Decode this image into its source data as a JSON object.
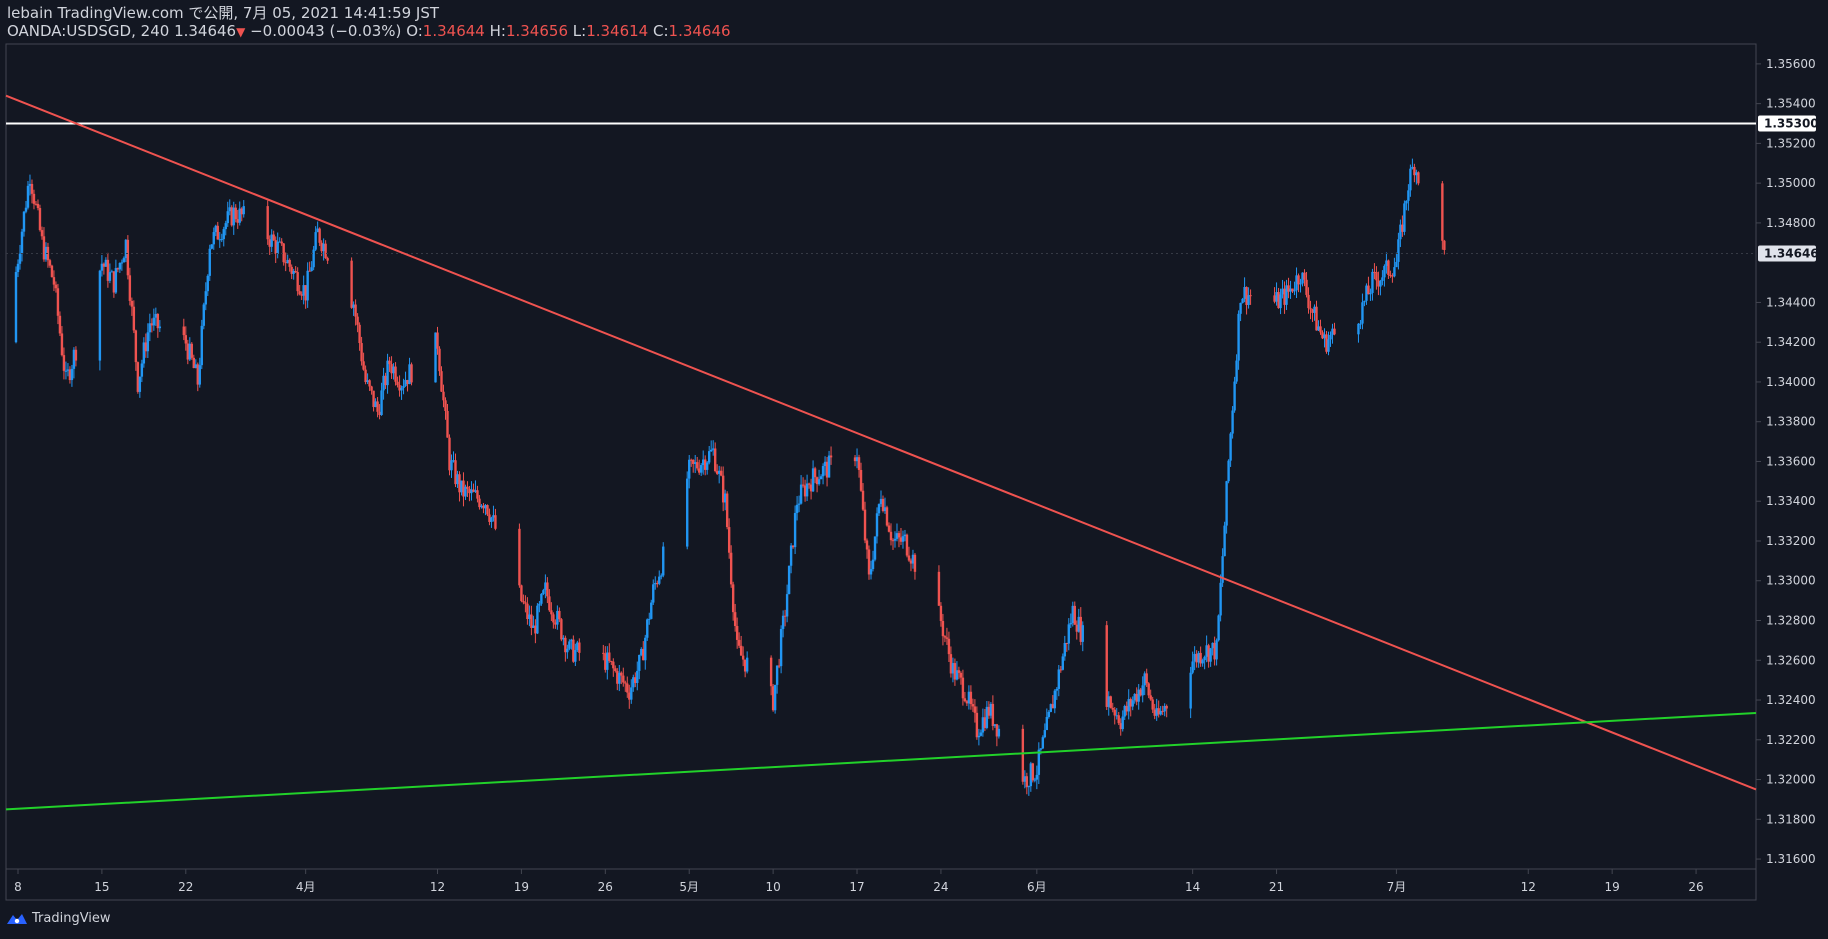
{
  "header": {
    "line1": "lebain TradingView.com で公開, 7月 05, 2021 14:41:59 JST",
    "symbol": "OANDA:USDSGD, 240",
    "last": "1.34646",
    "change": "−0.00043 (−0.03%)",
    "o_label": "O:",
    "o": "1.34644",
    "h_label": "H:",
    "h": "1.34656",
    "l_label": "L:",
    "l": "1.34614",
    "c_label": "C:",
    "c": "1.34646"
  },
  "footer": {
    "brand": "TradingView"
  },
  "colors": {
    "background": "#131722",
    "up": "#2196f3",
    "down": "#ef5350",
    "resistance_line": "#ef5350",
    "support_line": "#22d12a",
    "horizontal_level": "#ffffff"
  },
  "chart_data": {
    "type": "candlestick",
    "symbol": "OANDA:USDSGD",
    "timeframe": "240",
    "ylim": [
      1.3155,
      1.357
    ],
    "y_ticks": [
      "1.35600",
      "1.35400",
      "1.35200",
      "1.35000",
      "1.34800",
      "1.34400",
      "1.34200",
      "1.34000",
      "1.33800",
      "1.33600",
      "1.33400",
      "1.33200",
      "1.33000",
      "1.32800",
      "1.32600",
      "1.32400",
      "1.32200",
      "1.32000",
      "1.31800",
      "1.31600"
    ],
    "x_ticks": [
      {
        "label": "8",
        "date": "2021-03-08"
      },
      {
        "label": "15",
        "date": "2021-03-15"
      },
      {
        "label": "22",
        "date": "2021-03-22"
      },
      {
        "label": "4月",
        "date": "2021-04-01"
      },
      {
        "label": "12",
        "date": "2021-04-12"
      },
      {
        "label": "19",
        "date": "2021-04-19"
      },
      {
        "label": "26",
        "date": "2021-04-26"
      },
      {
        "label": "5月",
        "date": "2021-05-03"
      },
      {
        "label": "10",
        "date": "2021-05-10"
      },
      {
        "label": "17",
        "date": "2021-05-17"
      },
      {
        "label": "24",
        "date": "2021-05-24"
      },
      {
        "label": "6月",
        "date": "2021-06-01"
      },
      {
        "label": "14",
        "date": "2021-06-14"
      },
      {
        "label": "21",
        "date": "2021-06-21"
      },
      {
        "label": "7月",
        "date": "2021-07-01"
      },
      {
        "label": "12",
        "date": "2021-07-12"
      },
      {
        "label": "19",
        "date": "2021-07-19"
      },
      {
        "label": "26",
        "date": "2021-07-26"
      }
    ],
    "price_path": [
      [
        "2021-03-07",
        1.342
      ],
      [
        "2021-03-09",
        1.3505
      ],
      [
        "2021-03-10",
        1.347
      ],
      [
        "2021-03-11",
        1.345
      ],
      [
        "2021-03-12",
        1.34
      ],
      [
        "2021-03-15",
        1.346
      ],
      [
        "2021-03-16",
        1.345
      ],
      [
        "2021-03-17",
        1.347
      ],
      [
        "2021-03-18",
        1.34
      ],
      [
        "2021-03-19",
        1.343
      ],
      [
        "2021-03-22",
        1.342
      ],
      [
        "2021-03-23",
        1.34
      ],
      [
        "2021-03-24",
        1.347
      ],
      [
        "2021-03-26",
        1.3485
      ],
      [
        "2021-03-28",
        1.348
      ],
      [
        "2021-03-30",
        1.3465
      ],
      [
        "2021-04-01",
        1.3445
      ],
      [
        "2021-04-02",
        1.3475
      ],
      [
        "2021-04-05",
        1.344
      ],
      [
        "2021-04-06",
        1.34
      ],
      [
        "2021-04-07",
        1.3385
      ],
      [
        "2021-04-08",
        1.341
      ],
      [
        "2021-04-09",
        1.34
      ],
      [
        "2021-04-12",
        1.342
      ],
      [
        "2021-04-13",
        1.336
      ],
      [
        "2021-04-14",
        1.3345
      ],
      [
        "2021-04-16",
        1.334
      ],
      [
        "2021-04-19",
        1.329
      ],
      [
        "2021-04-20",
        1.3275
      ],
      [
        "2021-04-21",
        1.3295
      ],
      [
        "2021-04-23",
        1.3265
      ],
      [
        "2021-04-26",
        1.326
      ],
      [
        "2021-04-28",
        1.3245
      ],
      [
        "2021-04-29",
        1.326
      ],
      [
        "2021-04-30",
        1.3295
      ],
      [
        "2021-05-03",
        1.3355
      ],
      [
        "2021-05-04",
        1.336
      ],
      [
        "2021-05-05",
        1.3365
      ],
      [
        "2021-05-06",
        1.334
      ],
      [
        "2021-05-07",
        1.3265
      ],
      [
        "2021-05-10",
        1.324
      ],
      [
        "2021-05-11",
        1.3285
      ],
      [
        "2021-05-12",
        1.334
      ],
      [
        "2021-05-13",
        1.335
      ],
      [
        "2021-05-14",
        1.3355
      ],
      [
        "2021-05-17",
        1.3365
      ],
      [
        "2021-05-18",
        1.33
      ],
      [
        "2021-05-19",
        1.3345
      ],
      [
        "2021-05-20",
        1.332
      ],
      [
        "2021-05-21",
        1.332
      ],
      [
        "2021-05-24",
        1.328
      ],
      [
        "2021-05-25",
        1.3255
      ],
      [
        "2021-05-26",
        1.3245
      ],
      [
        "2021-05-27",
        1.3225
      ],
      [
        "2021-05-28",
        1.3235
      ],
      [
        "2021-05-31",
        1.32
      ],
      [
        "2021-06-01",
        1.3205
      ],
      [
        "2021-06-02",
        1.323
      ],
      [
        "2021-06-04",
        1.3285
      ],
      [
        "2021-06-07",
        1.324
      ],
      [
        "2021-06-08",
        1.323
      ],
      [
        "2021-06-09",
        1.324
      ],
      [
        "2021-06-10",
        1.325
      ],
      [
        "2021-06-11",
        1.323
      ],
      [
        "2021-06-14",
        1.326
      ],
      [
        "2021-06-15",
        1.3265
      ],
      [
        "2021-06-16",
        1.3265
      ],
      [
        "2021-06-17",
        1.336
      ],
      [
        "2021-06-18",
        1.3445
      ],
      [
        "2021-06-21",
        1.344
      ],
      [
        "2021-06-22",
        1.3445
      ],
      [
        "2021-06-23",
        1.3455
      ],
      [
        "2021-06-24",
        1.3435
      ],
      [
        "2021-06-25",
        1.342
      ],
      [
        "2021-06-28",
        1.3435
      ],
      [
        "2021-06-29",
        1.345
      ],
      [
        "2021-07-01",
        1.346
      ],
      [
        "2021-07-02",
        1.35
      ],
      [
        "2021-07-02T12:00",
        1.351
      ],
      [
        "2021-07-05",
        1.34646
      ]
    ],
    "lines": [
      {
        "name": "resistance",
        "from": [
          "2021-03-07",
          1.3544
        ],
        "to": [
          "2021-07-31",
          1.3195
        ],
        "color": "#ef5350"
      },
      {
        "name": "support",
        "from": [
          "2021-03-07",
          1.3185
        ],
        "to": [
          "2021-07-31",
          1.32335
        ],
        "color": "#22d12a"
      }
    ],
    "horizontal_level": {
      "value": 1.353,
      "label": "1.35300"
    },
    "last_price": {
      "value": 1.34646,
      "label": "1.34646"
    }
  }
}
